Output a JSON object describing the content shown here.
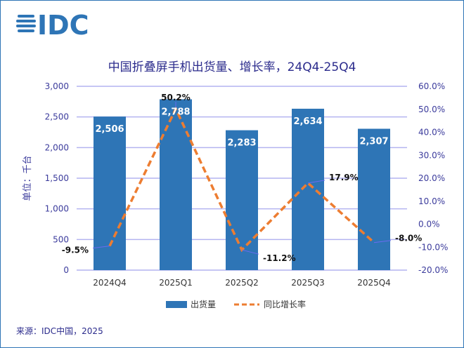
{
  "logo_text": "IDC",
  "source": "来源：IDC中国，2025",
  "colors": {
    "bar": "#2e75b6",
    "line": "#ed7d31",
    "grid": "#b4b4f0",
    "title": "#2b2b8c",
    "axis_text": "#3b3b9c"
  },
  "chart_data": {
    "type": "bar+line",
    "title": "中国折叠屏手机出货量、增长率，24Q4-25Q4",
    "ylabel": "单位：千台",
    "categories": [
      "2024Q4",
      "2025Q1",
      "2025Q2",
      "2025Q3",
      "2025Q4"
    ],
    "series": [
      {
        "name": "出货量",
        "type": "bar",
        "axis": "left",
        "values": [
          2506,
          2788,
          2283,
          2634,
          2307
        ],
        "labels": [
          "2,506",
          "2,788",
          "2,283",
          "2,634",
          "2,307"
        ]
      },
      {
        "name": "同比增长率",
        "type": "line",
        "style": "dashed",
        "axis": "right",
        "values": [
          -9.5,
          50.2,
          -11.2,
          17.9,
          -8.0
        ],
        "labels": [
          "-9.5%",
          "50.2%",
          "-11.2%",
          "17.9%",
          "-8.0%"
        ]
      }
    ],
    "ylim_left": [
      0,
      3000
    ],
    "yticks_left": [
      "0",
      "500",
      "1,000",
      "1,500",
      "2,000",
      "2,500",
      "3,000"
    ],
    "ylim_right": [
      -20,
      60
    ],
    "yticks_right": [
      "-20.0%",
      "-10.0%",
      "0.0%",
      "10.0%",
      "20.0%",
      "30.0%",
      "40.0%",
      "50.0%",
      "60.0%"
    ],
    "grid": true,
    "legend": "bottom"
  }
}
